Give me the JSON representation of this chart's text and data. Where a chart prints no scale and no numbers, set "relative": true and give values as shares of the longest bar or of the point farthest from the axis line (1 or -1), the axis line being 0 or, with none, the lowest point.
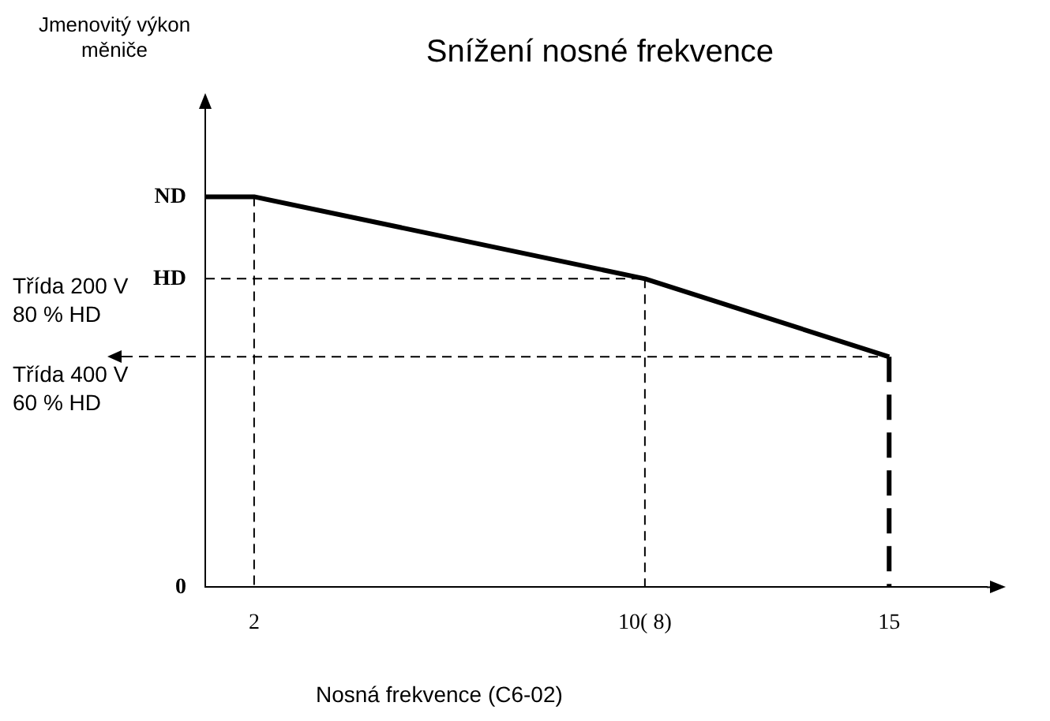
{
  "chart_data": {
    "type": "line",
    "title": "Snížení nosné frekvence",
    "xlabel": "Nosná frekvence (C6-02)",
    "relative": true,
    "xlim": [
      1,
      17
    ],
    "xticks": [
      {
        "value": 2,
        "label": "2"
      },
      {
        "value": 10,
        "label": "10( 8)"
      },
      {
        "value": 15,
        "label": "15"
      }
    ],
    "series": [
      {
        "color": "#000000",
        "x": [
          1,
          2,
          10,
          15
        ],
        "values": [
          1,
          1,
          0.79,
          0.59
        ],
        "line_style": "solid"
      },
      {
        "color": "#000000",
        "x": [
          2,
          2
        ],
        "values": [
          1,
          0
        ],
        "line_style": "dashed"
      },
      {
        "color": "#000000",
        "x": [
          1,
          10
        ],
        "values": [
          0.79,
          0.79
        ],
        "line_style": "dashed"
      },
      {
        "color": "#000000",
        "x": [
          10,
          10
        ],
        "values": [
          0.79,
          0
        ],
        "line_style": "dashed"
      },
      {
        "color": "#000000",
        "x": [
          1,
          15
        ],
        "values": [
          0.59,
          0.59
        ],
        "line_style": "dashed"
      },
      {
        "color": "#000000",
        "x": [
          15,
          15
        ],
        "values": [
          0.59,
          0
        ],
        "line_style": "dashed"
      }
    ],
    "annotations": [
      "Jmenovitý výkon měniče",
      "Třída 200 V\n80 % HD",
      "Třída 400 V\n60 % HD",
      "ND",
      "HD",
      "0"
    ],
    "grid": false,
    "legend": false,
    "marker": "none"
  }
}
